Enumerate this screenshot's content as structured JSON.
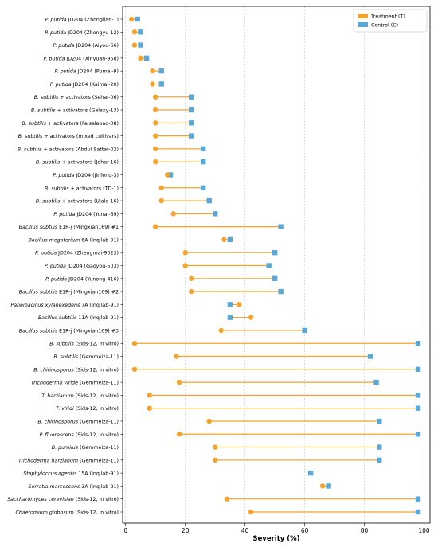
{
  "chart_data": {
    "type": "dumbbell",
    "xlabel": "Severity (%)",
    "xlim": [
      -1,
      102
    ],
    "xticks": [
      0,
      20,
      40,
      60,
      80,
      100
    ],
    "grid": "vertical-dashed",
    "legend_placement": "top-right",
    "series": [
      {
        "name": "Treatment (T)",
        "color": "#f4a42c",
        "marker": "circle"
      },
      {
        "name": "Control (C)",
        "color": "#5aa8d8",
        "marker": "square"
      }
    ],
    "rows": [
      {
        "organism": "P. putida",
        "italic": true,
        "strain": " JD204 (Zhonglian-1)",
        "treatment": 2,
        "control": 4
      },
      {
        "organism": "P. putida",
        "italic": true,
        "strain": " JD204 (Zhongyu-12)",
        "treatment": 3,
        "control": 5
      },
      {
        "organism": "P. putida",
        "italic": true,
        "strain": " JD204 (Aiyou-66)",
        "treatment": 3,
        "control": 5
      },
      {
        "organism": "P. putida",
        "italic": true,
        "strain": " JD204 (Xinyuan-958)",
        "treatment": 5,
        "control": 7
      },
      {
        "organism": "P. putida",
        "italic": true,
        "strain": " JD204 (Pumai-9)",
        "treatment": 9,
        "control": 12
      },
      {
        "organism": "P. putida",
        "italic": true,
        "strain": " JD204 (Kaimai-20)",
        "treatment": 9,
        "control": 12
      },
      {
        "organism": "B. subtilis",
        "italic": true,
        "strain": " + activators (Sehar-06)",
        "treatment": 10,
        "control": 22
      },
      {
        "organism": "B. subtilis",
        "italic": true,
        "strain": " + activators (Galaxy-13)",
        "treatment": 10,
        "control": 22
      },
      {
        "organism": "B. subtilis",
        "italic": true,
        "strain": " + activators (Faisalabad-08)",
        "treatment": 10,
        "control": 22
      },
      {
        "organism": "B. subtilis",
        "italic": true,
        "strain": " + activators (mixed cultivars)",
        "treatment": 10,
        "control": 22
      },
      {
        "organism": "B. subtilis",
        "italic": true,
        "strain": " + activators (Abdul Sattar-02)",
        "treatment": 10,
        "control": 26
      },
      {
        "organism": "B. subtilis",
        "italic": true,
        "strain": " + activators (Johar-16)",
        "treatment": 10,
        "control": 26
      },
      {
        "organism": "P. putida",
        "italic": true,
        "strain": " JD204 (Jinfeng-3)",
        "treatment": 14,
        "control": 15
      },
      {
        "organism": "B. subtilis",
        "italic": true,
        "strain": " + activators (TD-1)",
        "treatment": 12,
        "control": 26
      },
      {
        "organism": "B. subtilis",
        "italic": true,
        "strain": " + activators (Ujala-16)",
        "treatment": 12,
        "control": 28
      },
      {
        "organism": "P. putida",
        "italic": true,
        "strain": " JD204 (Yunai-69)",
        "treatment": 16,
        "control": 30
      },
      {
        "organism": "Bacillus subtilis",
        "italic": true,
        "strain": " E1R-j (Mingxian169) #1",
        "treatment": 10,
        "control": 52
      },
      {
        "organism": "Bacillus megaterium",
        "italic": true,
        "strain": " 6A (Inqilab-91)",
        "treatment": 33,
        "control": 35
      },
      {
        "organism": "P. putida",
        "italic": true,
        "strain": " JD204 (Zhengmai-9023)",
        "treatment": 20,
        "control": 50
      },
      {
        "organism": "P. putida",
        "italic": true,
        "strain": " JD204 (Gaoyou-503)",
        "treatment": 20,
        "control": 48
      },
      {
        "organism": "P. putida",
        "italic": true,
        "strain": " JD204 (Yunong-416)",
        "treatment": 22,
        "control": 50
      },
      {
        "organism": "Bacillus subtilis",
        "italic": true,
        "strain": " E1R-j (Mingxian169) #2",
        "treatment": 22,
        "control": 52
      },
      {
        "organism": "Paneibacillus xylanexedens",
        "italic": true,
        "strain": " 7A (Inqilab-91)",
        "treatment": 38,
        "control": 35
      },
      {
        "organism": "Bacillus subtilis",
        "italic": true,
        "strain": " 11A (Inqilab-91)",
        "treatment": 42,
        "control": 35
      },
      {
        "organism": "Bacillus subtilis",
        "italic": true,
        "strain": " E1R-j (Mingxian169) #3",
        "treatment": 32,
        "control": 60
      },
      {
        "organism": "B. subtilis",
        "italic": true,
        "strain": " (Sids-12, in vitro)",
        "treatment": 3,
        "control": 98
      },
      {
        "organism": "B. subtilis",
        "italic": true,
        "strain": " (Gemmeiza-11)",
        "treatment": 17,
        "control": 82
      },
      {
        "organism": "B. chitinosporus",
        "italic": true,
        "strain": " (Sids-12, in vitro)",
        "treatment": 3,
        "control": 98
      },
      {
        "organism": "Trichoderma viride",
        "italic": true,
        "strain": " (Gemmeiza-11)",
        "treatment": 18,
        "control": 84
      },
      {
        "organism": "T. harzianum",
        "italic": true,
        "strain": " (Sids-12, in vitro)",
        "treatment": 8,
        "control": 98
      },
      {
        "organism": "T. viridi",
        "italic": true,
        "strain": " (Sids-12, in vitro)",
        "treatment": 8,
        "control": 98
      },
      {
        "organism": "B. chitinosporus",
        "italic": true,
        "strain": " (Gemmeiza-11)",
        "treatment": 28,
        "control": 85
      },
      {
        "organism": "P. fluorescens",
        "italic": true,
        "strain": " (Sids-12, in vitro)",
        "treatment": 18,
        "control": 98
      },
      {
        "organism": "B. pumilus",
        "italic": true,
        "strain": " (Gemmeiza-11)",
        "treatment": 30,
        "control": 85
      },
      {
        "organism": "Trichoderma harzianum",
        "italic": true,
        "strain": " (Gemmeiza-11)",
        "treatment": 30,
        "control": 85
      },
      {
        "organism": "Staphyloccus agentis",
        "italic": true,
        "strain": " 15A (Inqilab-91)",
        "treatment": null,
        "control": 62
      },
      {
        "organism": "Serratia marcescens",
        "italic": true,
        "strain": " 3A (Inqilab-91)",
        "treatment": 66,
        "control": 68
      },
      {
        "organism": "Saccharomyces cerevisiae",
        "italic": true,
        "strain": " (Sids-12, in vitro)",
        "treatment": 34,
        "control": 98
      },
      {
        "organism": "Chaetomium globosum",
        "italic": true,
        "strain": " (Sids-12, in vitro)",
        "treatment": 42,
        "control": 98
      }
    ]
  }
}
